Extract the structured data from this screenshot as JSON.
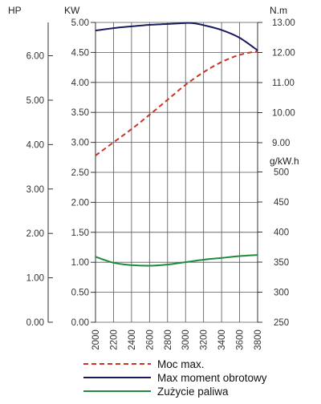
{
  "chart_data": {
    "type": "line",
    "x": {
      "label": "",
      "ticks": [
        2000,
        2200,
        2400,
        2600,
        2800,
        3000,
        3200,
        3400,
        3600,
        3800
      ],
      "range": [
        2000,
        3800
      ]
    },
    "axes": {
      "hp": {
        "unit": "HP",
        "ticks": [
          "0.00",
          "1.00",
          "2.00",
          "3.00",
          "4.00",
          "5.00",
          "6.00"
        ],
        "range": [
          0,
          6.75
        ]
      },
      "kw": {
        "unit": "KW",
        "ticks": [
          "0.00",
          "0.50",
          "1.00",
          "1.50",
          "2.00",
          "2.50",
          "3.00",
          "3.50",
          "4.00",
          "4.50",
          "5.00"
        ],
        "range": [
          0,
          5
        ]
      },
      "nm": {
        "unit": "N.m",
        "ticks": [
          "9.00",
          "10.00",
          "11.00",
          "12.00",
          "13.00"
        ],
        "range": [
          9,
          13
        ]
      },
      "gkwh": {
        "unit": "g/kW.h",
        "ticks": [
          "250",
          "300",
          "350",
          "400",
          "450",
          "500"
        ],
        "range": [
          250,
          500
        ]
      }
    },
    "series": [
      {
        "name": "Moc max.",
        "axis": "kw",
        "color": "#cc3322",
        "style": "dashed",
        "x": [
          2000,
          2200,
          2400,
          2600,
          2800,
          3000,
          3200,
          3400,
          3600,
          3800
        ],
        "y": [
          2.78,
          3.0,
          3.22,
          3.46,
          3.71,
          3.96,
          4.17,
          4.34,
          4.46,
          4.52
        ]
      },
      {
        "name": "Max moment obrotowy",
        "axis": "nm",
        "color": "#1a1a5e",
        "style": "solid",
        "x": [
          2000,
          2200,
          2400,
          2600,
          2800,
          3000,
          3100,
          3200,
          3400,
          3600,
          3800
        ],
        "y": [
          12.73,
          12.81,
          12.87,
          12.92,
          12.95,
          12.98,
          12.97,
          12.91,
          12.75,
          12.49,
          12.07
        ]
      },
      {
        "name": "Zużycie paliwa",
        "axis": "gkwh",
        "color": "#1e8a3c",
        "style": "solid",
        "x": [
          2000,
          2200,
          2400,
          2600,
          2800,
          3000,
          3200,
          3400,
          3600,
          3800
        ],
        "y": [
          359,
          349,
          345,
          344,
          346,
          350,
          354,
          357,
          360,
          362
        ]
      }
    ],
    "grid": true,
    "legend": "bottom"
  }
}
